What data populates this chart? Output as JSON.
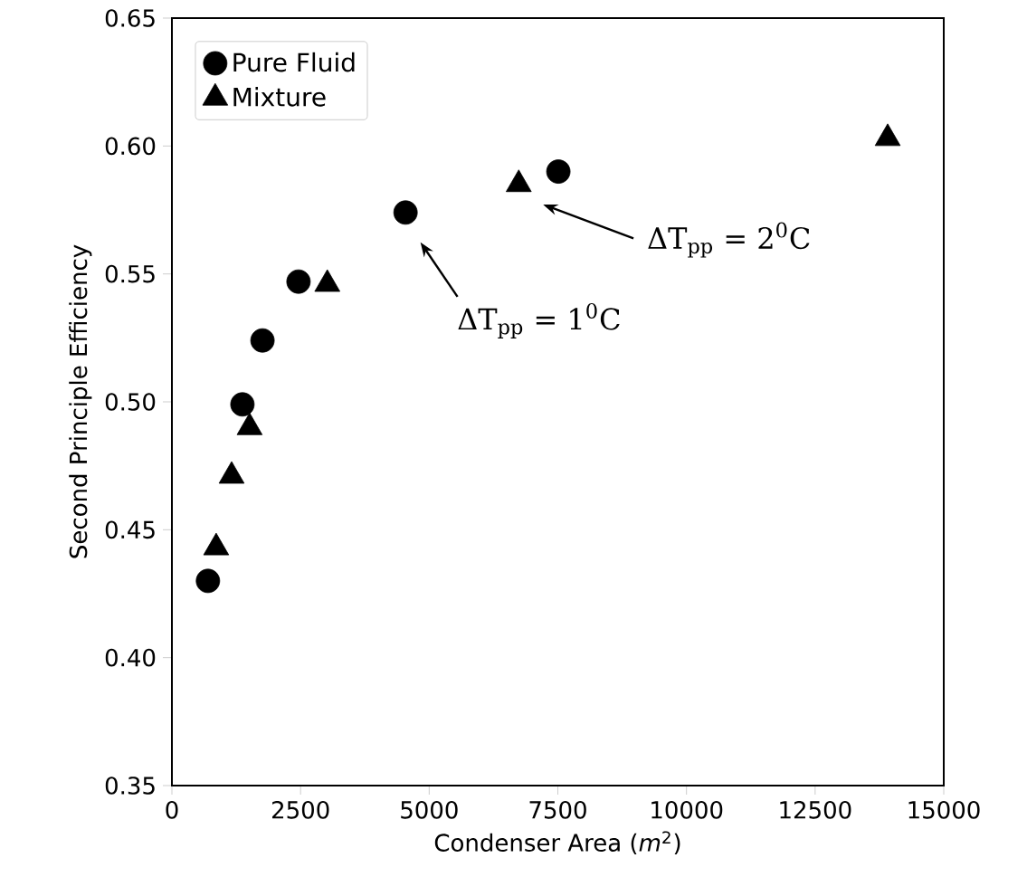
{
  "chart_data": {
    "type": "scatter",
    "xlabel": "Condenser Area (*m*$^{2}$)",
    "ylabel": "Second Principle Efficiency",
    "series": [
      {
        "name": "Pure Fluid",
        "color": "#000000",
        "marker": "circle",
        "x": [
          700,
          1370,
          1760,
          2460,
          4540,
          7510
        ],
        "values": [
          0.43,
          0.499,
          0.524,
          0.547,
          0.574,
          0.59
        ]
      },
      {
        "name": "Mixture",
        "color": "#000000",
        "marker": "triangle",
        "x": [
          860,
          1160,
          1510,
          3020,
          6740,
          13910
        ],
        "values": [
          0.443,
          0.471,
          0.49,
          0.546,
          0.585,
          0.603
        ]
      }
    ],
    "xlim": [
      0,
      15000
    ],
    "ylim": [
      0.35,
      0.65
    ],
    "xticks": [
      0,
      2500,
      5000,
      7500,
      10000,
      12500,
      15000
    ],
    "yticks": [
      {
        "value": 0.35,
        "label": "0.35"
      },
      {
        "value": 0.4,
        "label": "0.40"
      },
      {
        "value": 0.45,
        "label": "0.45"
      },
      {
        "value": 0.5,
        "label": "0.50"
      },
      {
        "value": 0.55,
        "label": "0.55"
      },
      {
        "value": 0.6,
        "label": "0.60"
      },
      {
        "value": 0.65,
        "label": "0.65"
      }
    ],
    "legend": "top left",
    "annotations": [
      "ΔT$_{pp}$ = 1$^{0}$C",
      "ΔT$_{pp}$ = 2$^{0}$C"
    ]
  }
}
